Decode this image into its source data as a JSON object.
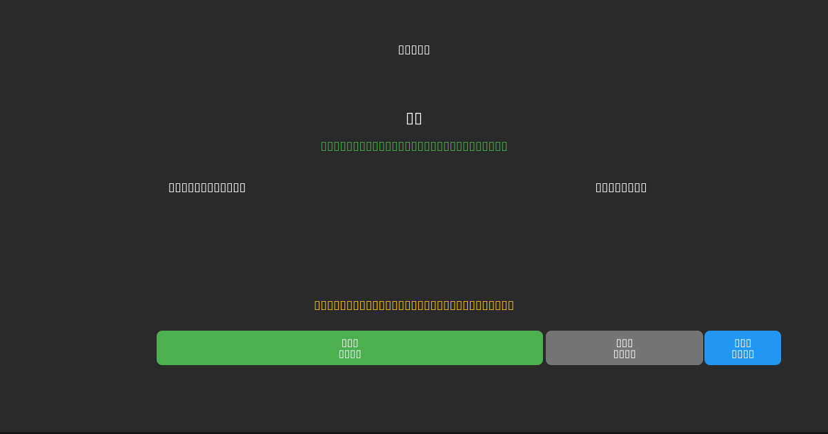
{
  "card": {
    "title": "▯▯▯▯▯",
    "heading": "▯▯",
    "subtitle": "▯▯▯▯▯▯▯▯▯▯▯▯▯▯▯▯▯▯▯▯▯▯▯▯▯▯▯▯▯",
    "left_column_label": "▯▯▯▯▯▯▯▯▯▯▯▯",
    "right_column_label": "▯▯▯▯▯▯▯▯",
    "notice": "▯▯▯▯▯▯▯▯▯▯▯▯▯▯▯▯▯▯▯▯▯▯▯▯▯▯▯▯▯▯▯",
    "buttons": [
      {
        "line1": "▯▯▯",
        "line2": "▯▯▯▯",
        "color": "#4caf50"
      },
      {
        "line1": "▯▯▯",
        "line2": "▯▯▯▯",
        "color": "#757575"
      },
      {
        "line1": "▯▯▯",
        "line2": "▯▯▯▯",
        "color": "#2196f3"
      }
    ]
  },
  "colors": {
    "background": "#2a2a2a",
    "title_text": "#ffffff",
    "subtitle_text": "#4caf50",
    "notice_text": "#ffc107",
    "primary_button": "#4caf50",
    "secondary_button": "#757575",
    "tertiary_button": "#2196f3",
    "button_text": "#ffffff"
  }
}
